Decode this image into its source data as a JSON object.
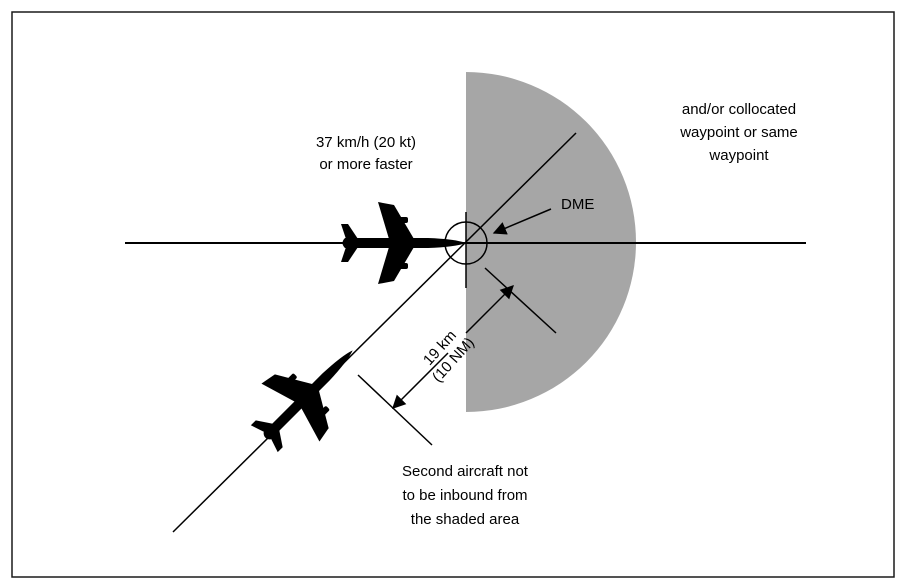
{
  "labels": {
    "speed_line1": "37 km/h (20 kt)",
    "speed_line2": "or more faster",
    "waypoint_line1": "and/or collocated",
    "waypoint_line2": "waypoint or same",
    "waypoint_line3": "waypoint",
    "dme": "DME",
    "distance_line1": "19 km",
    "distance_line2": "(10 NM)",
    "note_line1": "Second aircraft not",
    "note_line2": "to be inbound from",
    "note_line3": "the shaded area"
  },
  "colors": {
    "shaded_area": "#a6a6a6",
    "lines": "#000000",
    "border": "#1a1a1a"
  },
  "icons": {
    "aircraft_1": "airplane-icon",
    "aircraft_2": "airplane-icon"
  }
}
